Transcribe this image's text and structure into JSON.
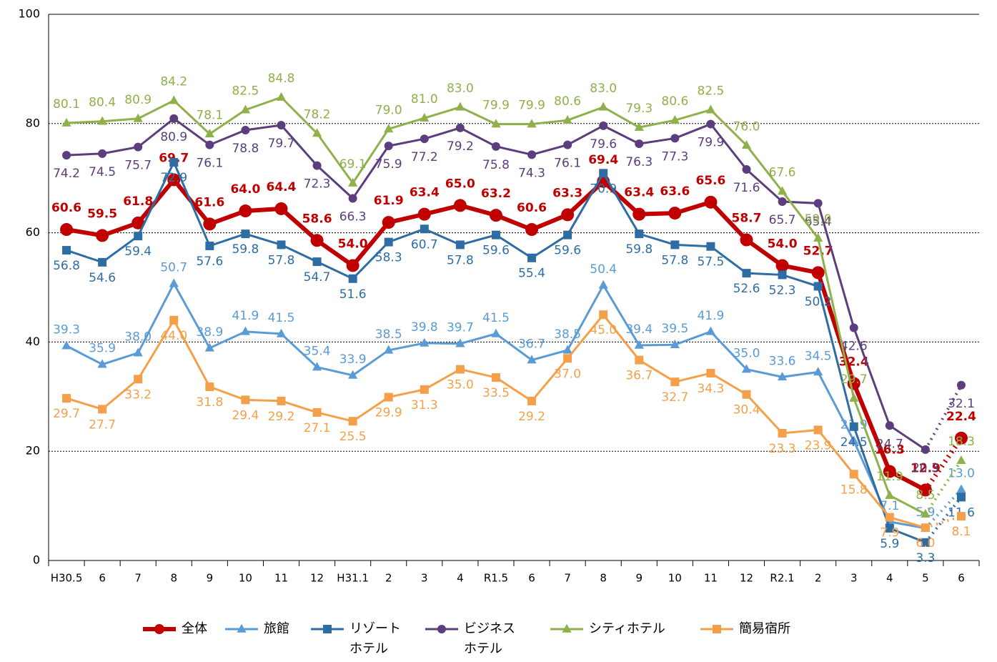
{
  "chart_data": {
    "type": "line",
    "categories": [
      "H30.5",
      "6",
      "7",
      "8",
      "9",
      "10",
      "11",
      "12",
      "H31.1",
      "2",
      "3",
      "4",
      "R1.5",
      "6",
      "7",
      "8",
      "9",
      "10",
      "11",
      "12",
      "R2.1",
      "2",
      "3",
      "4",
      "5",
      "6"
    ],
    "ylim": [
      0,
      100
    ],
    "yticks": [
      0,
      20,
      40,
      60,
      80,
      100
    ],
    "grid": true,
    "series": [
      {
        "name": "全体",
        "color": "#c00000",
        "marker": "circle",
        "width": 6,
        "values": [
          60.6,
          59.5,
          61.8,
          69.7,
          61.6,
          64.0,
          64.4,
          58.6,
          54.0,
          61.9,
          63.4,
          65.0,
          63.2,
          60.6,
          63.3,
          69.4,
          63.4,
          63.6,
          65.6,
          58.7,
          54.0,
          52.7,
          32.4,
          16.3,
          12.9,
          22.4
        ],
        "value_labels": [
          "60.6",
          "59.5",
          "61.8",
          "69.7",
          "61.6",
          "64.0",
          "64.4",
          "58.6",
          "54.0",
          "61.9",
          "63.4",
          "65.0",
          "63.2",
          "60.6",
          "63.3",
          "69.4",
          "63.4",
          "63.6",
          "65.6",
          "58.7",
          "54.0",
          "52.7",
          "32.4",
          "16.3",
          "12.9",
          "22.4"
        ]
      },
      {
        "name": "旅館",
        "color": "#5b9bd5",
        "marker": "triangle",
        "width": 3,
        "values": [
          39.3,
          35.9,
          38.0,
          50.7,
          38.9,
          41.9,
          41.5,
          35.4,
          33.9,
          38.5,
          39.8,
          39.7,
          41.5,
          36.7,
          38.5,
          50.4,
          39.4,
          39.5,
          41.9,
          35.0,
          33.6,
          34.5,
          21.9,
          7.1,
          5.9,
          13.0
        ],
        "value_labels": [
          "39.3",
          "35.9",
          "38.0",
          "50.7",
          "38.9",
          "41.9",
          "41.5",
          "35.4",
          "33.9",
          "38.5",
          "39.8",
          "39.7",
          "41.5",
          "36.7",
          "38.5",
          "50.4",
          "39.4",
          "39.5",
          "41.9",
          "35.0",
          "33.6",
          "34.5",
          "21.9",
          "7.1",
          "5.9",
          "13.0"
        ]
      },
      {
        "name": "リゾート\nホテル",
        "color": "#2e6da4",
        "marker": "square",
        "width": 3,
        "values": [
          56.8,
          54.6,
          59.4,
          72.9,
          57.6,
          59.8,
          57.8,
          54.7,
          51.6,
          58.3,
          60.7,
          57.8,
          59.6,
          55.4,
          59.6,
          70.9,
          59.8,
          57.8,
          57.5,
          52.6,
          52.3,
          50.2,
          24.5,
          5.9,
          3.3,
          11.6
        ],
        "value_labels": [
          "56.8",
          "54.6",
          "59.4",
          "72.9",
          "57.6",
          "59.8",
          "57.8",
          "54.7",
          "51.6",
          "58.3",
          "60.7",
          "57.8",
          "59.6",
          "55.4",
          "59.6",
          "70.9",
          "59.8",
          "57.8",
          "57.5",
          "52.6",
          "52.3",
          "50.2",
          "24.5",
          "5.9",
          "3.3",
          "11.6"
        ]
      },
      {
        "name": "ビジネス\nホテル",
        "color": "#5c3d7d",
        "marker": "circle",
        "width": 3,
        "values": [
          74.2,
          74.5,
          75.7,
          80.9,
          76.1,
          78.8,
          79.7,
          72.3,
          66.3,
          75.9,
          77.2,
          79.2,
          75.8,
          74.3,
          76.1,
          79.6,
          76.3,
          77.3,
          79.9,
          71.6,
          65.7,
          65.4,
          42.6,
          24.7,
          20.3,
          32.1
        ],
        "value_labels": [
          "74.2",
          "74.5",
          "75.7",
          "80.9",
          "76.1",
          "78.8",
          "79.7",
          "72.3",
          "66.3",
          "75.9",
          "77.2",
          "79.2",
          "75.8",
          "74.3",
          "76.1",
          "79.6",
          "76.3",
          "77.3",
          "79.9",
          "71.6",
          "65.7",
          "65.4",
          "42.6",
          "24.7",
          "20.3",
          "32.1"
        ]
      },
      {
        "name": "シティホテル",
        "color": "#8fb04a",
        "marker": "triangle",
        "width": 3,
        "values": [
          80.1,
          80.4,
          80.9,
          84.2,
          78.1,
          82.5,
          84.8,
          78.2,
          69.1,
          79.0,
          81.0,
          83.0,
          79.9,
          79.9,
          80.6,
          83.0,
          79.3,
          80.6,
          82.5,
          76.0,
          67.6,
          59.0,
          29.7,
          11.9,
          8.5,
          18.3
        ],
        "value_labels": [
          "80.1",
          "80.4",
          "80.9",
          "84.2",
          "78.1",
          "82.5",
          "84.8",
          "78.2",
          "69.1",
          "79.0",
          "81.0",
          "83.0",
          "79.9",
          "79.9",
          "80.6",
          "83.0",
          "79.3",
          "80.6",
          "82.5",
          "76.0",
          "67.6",
          "59.0",
          "29.7",
          "11.9",
          "8.5",
          "18.3"
        ]
      },
      {
        "name": "簡易宿所",
        "color": "#f4a04a",
        "marker": "square",
        "width": 3,
        "values": [
          29.7,
          27.7,
          33.2,
          44.0,
          31.8,
          29.4,
          29.2,
          27.1,
          25.5,
          29.9,
          31.3,
          35.0,
          33.5,
          29.2,
          37.0,
          45.0,
          36.7,
          32.7,
          34.3,
          30.4,
          23.3,
          23.9,
          15.8,
          7.9,
          6.0,
          8.1
        ],
        "value_labels": [
          "29.7",
          "27.7",
          "33.2",
          "44.0",
          "31.8",
          "29.4",
          "29.2",
          "27.1",
          "25.5",
          "29.9",
          "31.3",
          "35.0",
          "33.5",
          "29.2",
          "37.0",
          "45.0",
          "36.7",
          "32.7",
          "34.3",
          "30.4",
          "23.3",
          "23.9",
          "15.8",
          "7.9",
          "6.0",
          "8.1"
        ]
      }
    ]
  }
}
